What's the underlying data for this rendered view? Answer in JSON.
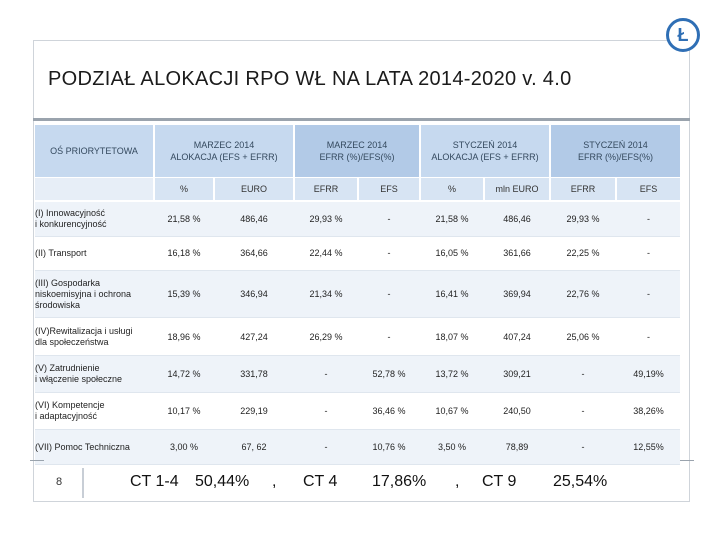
{
  "title": "PODZIAŁ ALOKACJI RPO WŁ NA LATA 2014-2020 v. 4.0",
  "logo_glyph": "Ł",
  "headers": {
    "axis": "OŚ PRIORYTETOWA",
    "group1": "MARZEC 2014\nALOKACJA  (EFS + EFRR)",
    "group2": "MARZEC  2014\nEFRR (%)/EFS(%)",
    "group3": "STYCZEŃ 2014\nALOKACJA  (EFS + EFRR)",
    "group4": "STYCZEŃ 2014\nEFRR (%)/EFS(%)"
  },
  "subheaders": [
    "%",
    "EURO",
    "EFRR",
    "EFS",
    "%",
    "mln EURO",
    "EFRR",
    "EFS"
  ],
  "rows": [
    {
      "label": "(I) Innowacyjność\ni konkurencyjność",
      "values": [
        "21,58 %",
        "486,46",
        "29,93 %",
        "-",
        "21,58 %",
        "486,46",
        "29,93 %",
        "-"
      ]
    },
    {
      "label": "(II) Transport",
      "values": [
        "16,18 %",
        "364,66",
        "22,44 %",
        "-",
        "16,05 %",
        "361,66",
        "22,25 %",
        "-"
      ]
    },
    {
      "label": "(III) Gospodarka\nniskoemisyjna i ochrona\nśrodowiska",
      "values": [
        "15,39 %",
        "346,94",
        "21,34 %",
        "-",
        "16,41 %",
        "369,94",
        "22,76 %",
        "-"
      ]
    },
    {
      "label": "(IV)Rewitalizacja i usługi\ndla społeczeństwa",
      "values": [
        "18,96 %",
        "427,24",
        "26,29 %",
        "-",
        "18,07 %",
        "407,24",
        "25,06 %",
        "-"
      ]
    },
    {
      "label": "(V) Zatrudnienie\ni włączenie społeczne",
      "values": [
        "14,72 %",
        "331,78",
        "-",
        "52,78 %",
        "13,72 %",
        "309,21",
        "-",
        "49,19%"
      ]
    },
    {
      "label": "(VI) Kompetencje\ni adaptacyjność",
      "values": [
        "10,17 %",
        "229,19",
        "-",
        "36,46 %",
        "10,67 %",
        "240,50",
        "-",
        "38,26%"
      ]
    },
    {
      "label": "(VII) Pomoc Techniczna",
      "values": [
        "3,00 %",
        "67, 62",
        "-",
        "10,76 %",
        "3,50 %",
        "78,89",
        "-",
        "12,55%"
      ]
    }
  ],
  "footer": {
    "page_number": "8",
    "ct14": "CT 1-4",
    "ct14_value": "50,44%",
    "sep1": ",",
    "ct4": "CT 4",
    "ct4_value": "17,86%",
    "sep2": ",",
    "ct9": "CT 9",
    "ct9_value": "25,54%"
  },
  "colors": {
    "header_fill": "#c6d9ef",
    "subheader_fill": "#d7e4f3",
    "row_band": "#eef3f9",
    "logo": "#2f6fb5"
  }
}
